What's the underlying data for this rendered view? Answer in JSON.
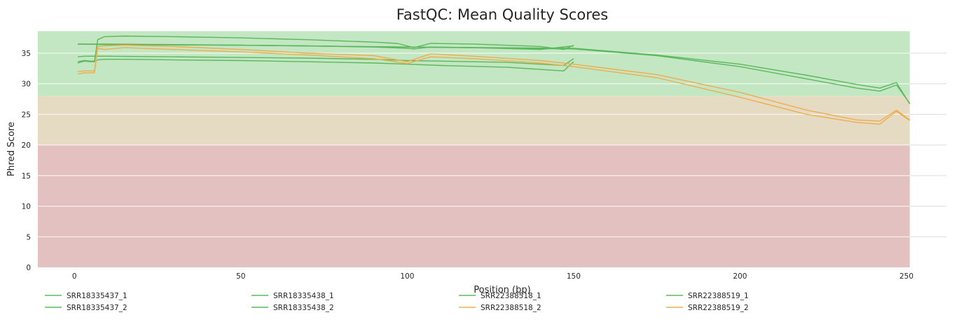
{
  "chart_data": {
    "type": "line",
    "title": "FastQC: Mean Quality Scores",
    "xlabel": "Position (bp)",
    "ylabel": "Phred Score",
    "xlim": [
      -11,
      262
    ],
    "ylim": [
      0,
      38.6
    ],
    "xticks": [
      0,
      50,
      100,
      150,
      200,
      250
    ],
    "yticks": [
      0,
      5,
      10,
      15,
      20,
      25,
      30,
      35
    ],
    "grid": true,
    "legend_position": "bottom",
    "bands": [
      {
        "from": 0,
        "to": 20,
        "color": "#e4c1c1"
      },
      {
        "from": 20,
        "to": 28,
        "color": "#e5dbc2"
      },
      {
        "from": 28,
        "to": 38.6,
        "color": "#c3e6c3"
      }
    ],
    "band_x_range": [
      -11,
      251
    ],
    "colors": {
      "pass": "#5cb85c",
      "warn": "#f0ad4e"
    },
    "series": [
      {
        "name": "SRR18335437_1",
        "color": "#5cb85c",
        "x": [
          1,
          3,
          5,
          6,
          7,
          9,
          15,
          30,
          50,
          70,
          90,
          97,
          102,
          107,
          120,
          140,
          147,
          150
        ],
        "y": [
          33.4,
          33.7,
          33.6,
          33.6,
          37.2,
          37.7,
          37.8,
          37.7,
          37.5,
          37.2,
          36.8,
          36.6,
          35.9,
          36.6,
          36.5,
          36.1,
          35.6,
          36.3
        ]
      },
      {
        "name": "SRR18335437_2",
        "color": "#5cb85c",
        "x": [
          1,
          3,
          5,
          6,
          7,
          9,
          15,
          30,
          50,
          70,
          90,
          100,
          110,
          130,
          147,
          150
        ],
        "y": [
          33.6,
          33.8,
          33.7,
          33.7,
          33.9,
          34.0,
          34.0,
          33.9,
          33.8,
          33.6,
          33.4,
          33.2,
          33.0,
          32.7,
          32.1,
          33.6
        ]
      },
      {
        "name": "SRR18335438_1",
        "color": "#5cb85c",
        "x": [
          1,
          5,
          10,
          30,
          50,
          70,
          90,
          100,
          102,
          107,
          120,
          140,
          150
        ],
        "y": [
          36.5,
          36.5,
          36.5,
          36.4,
          36.3,
          36.2,
          36.0,
          35.8,
          35.7,
          36.0,
          35.9,
          35.6,
          36.2
        ]
      },
      {
        "name": "SRR18335438_2",
        "color": "#5cb85c",
        "x": [
          1,
          3,
          5,
          10,
          30,
          50,
          70,
          90,
          100,
          110,
          130,
          147,
          150
        ],
        "y": [
          34.4,
          34.5,
          34.5,
          34.5,
          34.4,
          34.3,
          34.2,
          34.0,
          33.8,
          33.7,
          33.5,
          33.0,
          34.1
        ]
      },
      {
        "name": "SRR22388518_1",
        "color": "#5cb85c",
        "x": [
          1,
          10,
          50,
          100,
          150,
          175,
          200,
          220,
          235,
          242,
          247,
          251
        ],
        "y": [
          36.5,
          36.4,
          36.3,
          36.0,
          35.7,
          34.6,
          32.8,
          30.8,
          29.3,
          28.8,
          29.8,
          26.8
        ]
      },
      {
        "name": "SRR22388518_2",
        "color": "#f0ad4e",
        "x": [
          1,
          3,
          5,
          6,
          7,
          9,
          15,
          30,
          50,
          70,
          90,
          100,
          107,
          120,
          140,
          150,
          175,
          200,
          220,
          235,
          242,
          247,
          251
        ],
        "y": [
          31.6,
          31.8,
          31.8,
          31.8,
          35.8,
          35.6,
          35.9,
          35.6,
          35.2,
          34.7,
          34.1,
          33.3,
          34.4,
          34.1,
          33.4,
          32.8,
          31.0,
          27.8,
          25.0,
          23.7,
          23.4,
          25.5,
          24.0
        ]
      },
      {
        "name": "SRR22388519_1",
        "color": "#5cb85c",
        "x": [
          1,
          10,
          50,
          100,
          150,
          175,
          200,
          220,
          235,
          242,
          247,
          251
        ],
        "y": [
          36.5,
          36.4,
          36.3,
          36.0,
          35.8,
          34.7,
          33.2,
          31.4,
          29.9,
          29.3,
          30.2,
          26.7
        ]
      },
      {
        "name": "SRR22388519_2",
        "color": "#f0ad4e",
        "x": [
          1,
          3,
          5,
          6,
          7,
          9,
          15,
          30,
          50,
          70,
          90,
          100,
          107,
          120,
          140,
          150,
          175,
          200,
          220,
          235,
          242,
          247,
          251
        ],
        "y": [
          32.0,
          32.1,
          32.1,
          32.1,
          36.1,
          36.2,
          36.3,
          36.1,
          35.6,
          35.0,
          34.6,
          33.6,
          34.9,
          34.5,
          33.8,
          33.2,
          31.5,
          28.6,
          25.7,
          24.1,
          23.9,
          25.7,
          24.1
        ]
      }
    ]
  }
}
